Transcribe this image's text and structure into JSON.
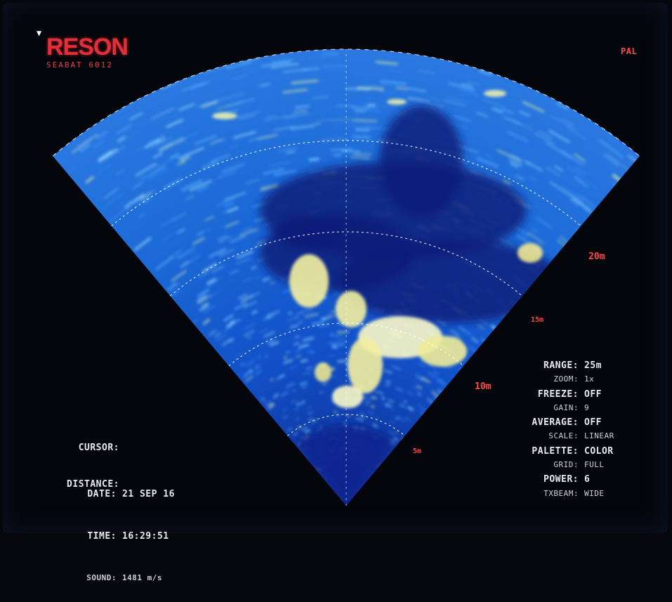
{
  "logo": {
    "name": "RESON",
    "subtitle": "SEABAT 6012"
  },
  "video_mode": "PAL",
  "range_rings": [
    "20m",
    "15m",
    "10m",
    "5m"
  ],
  "settings": [
    {
      "key": "RANGE:",
      "value": "25m",
      "small": false
    },
    {
      "key": "ZOOM:",
      "value": "1x",
      "small": true
    },
    {
      "key": "FREEZE:",
      "value": "OFF",
      "small": false
    },
    {
      "key": "GAIN:",
      "value": "9",
      "small": true
    },
    {
      "key": "AVERAGE:",
      "value": "OFF",
      "small": false
    },
    {
      "key": "SCALE:",
      "value": "LINEAR",
      "small": true
    },
    {
      "key": "PALETTE:",
      "value": "COLOR",
      "small": false
    },
    {
      "key": "GRID:",
      "value": "FULL",
      "small": true
    },
    {
      "key": "POWER:",
      "value": "6",
      "small": false
    },
    {
      "key": "TXBEAM:",
      "value": "WIDE",
      "small": true
    }
  ],
  "cursor": {
    "cursor_label": "CURSOR:",
    "distance_label": "DISTANCE:"
  },
  "status": {
    "date_label": "DATE:",
    "date_value": "21 SEP 16",
    "time_label": "TIME:",
    "time_value": "16:29:51",
    "sound_label": "SOUND:",
    "sound_value": "1481 m/s"
  },
  "colors": {
    "water_low": "#0a2a9a",
    "water_mid": "#1c6fe0",
    "echo_high": "#f4f0a0",
    "label_red": "#ff4848"
  }
}
